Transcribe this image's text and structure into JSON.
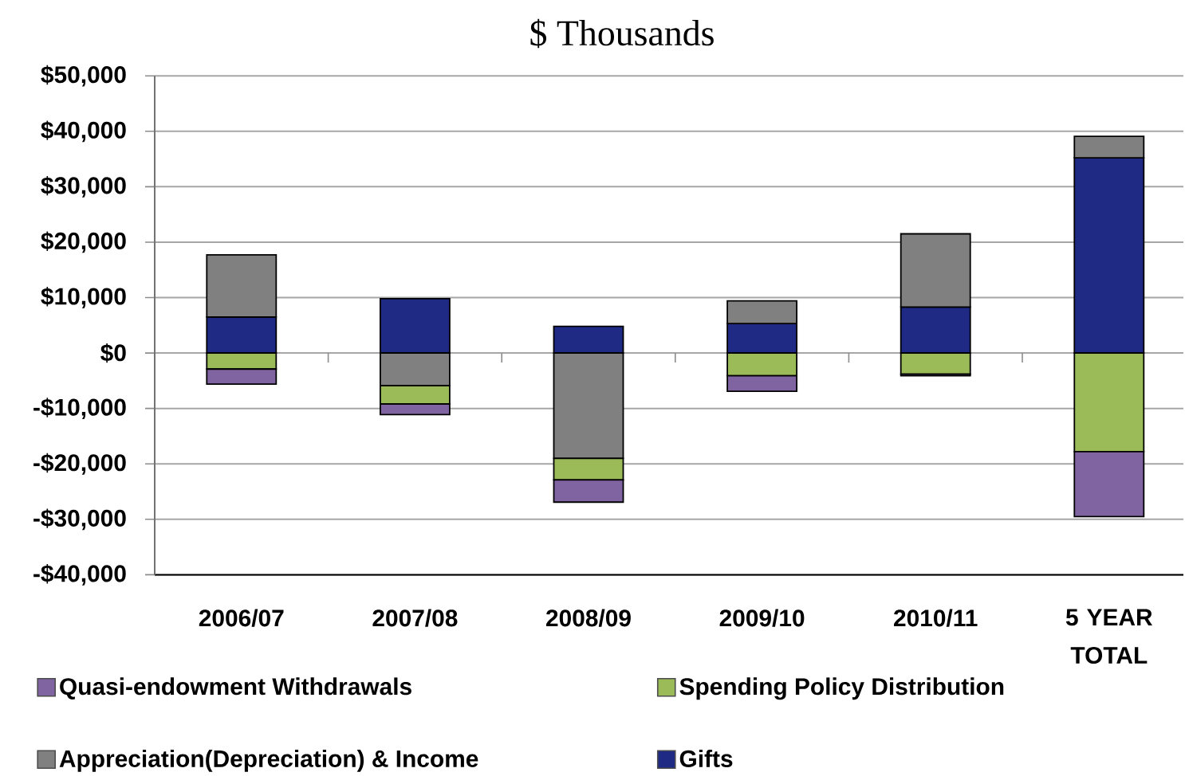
{
  "chart_data": {
    "type": "bar",
    "subtitle": "$ Thousands",
    "categories": [
      "2006/07",
      "2007/08",
      "2008/09",
      "2009/10",
      "2010/11",
      "5 YEAR TOTAL"
    ],
    "series": [
      {
        "name": "Gifts",
        "color": "#1f2a84",
        "values": [
          6500,
          9800,
          4800,
          5300,
          8300,
          35200
        ]
      },
      {
        "name": "Appreciation(Depreciation) & Income",
        "color": "#808080",
        "values": [
          11200,
          -5900,
          -19000,
          4100,
          13200,
          3900
        ]
      },
      {
        "name": "Spending Policy Distribution",
        "color": "#9bbb59",
        "values": [
          -2900,
          -3300,
          -3900,
          -4100,
          -3800,
          -17800
        ]
      },
      {
        "name": "Quasi-endowment Withdrawals",
        "color": "#8064a2",
        "values": [
          -2700,
          -1900,
          -4000,
          -2800,
          -300,
          -11700
        ]
      }
    ],
    "stacked": true,
    "ylim": [
      -40000,
      50000
    ],
    "yticks": [
      {
        "value": -40000,
        "label": "-$40,000"
      },
      {
        "value": -30000,
        "label": "-$30,000"
      },
      {
        "value": -20000,
        "label": "-$20,000"
      },
      {
        "value": -10000,
        "label": "-$10,000"
      },
      {
        "value": 0,
        "label": "$0"
      },
      {
        "value": 10000,
        "label": "$10,000"
      },
      {
        "value": 20000,
        "label": "$20,000"
      },
      {
        "value": 30000,
        "label": "$30,000"
      },
      {
        "value": 40000,
        "label": "$40,000"
      },
      {
        "value": 50000,
        "label": "$50,000"
      }
    ],
    "grid": "y",
    "legend": "bottom"
  }
}
